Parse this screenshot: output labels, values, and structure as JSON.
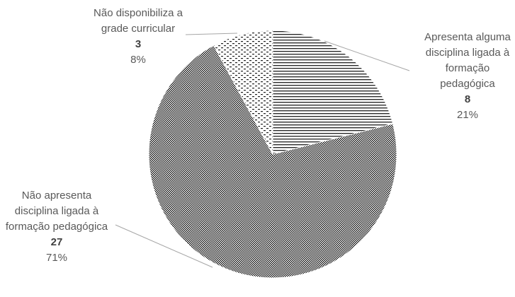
{
  "chart_data": {
    "type": "pie",
    "categories": [
      "Apresenta alguma disciplina ligada à formação pedagógica",
      "Não apresenta disciplina ligada à formação pedagógica",
      "Não disponibiliza a grade curricular"
    ],
    "values": [
      8,
      27,
      3
    ],
    "percentages": [
      21,
      71,
      8
    ],
    "percent_labels": [
      "21%",
      "71%",
      "8%"
    ]
  }
}
